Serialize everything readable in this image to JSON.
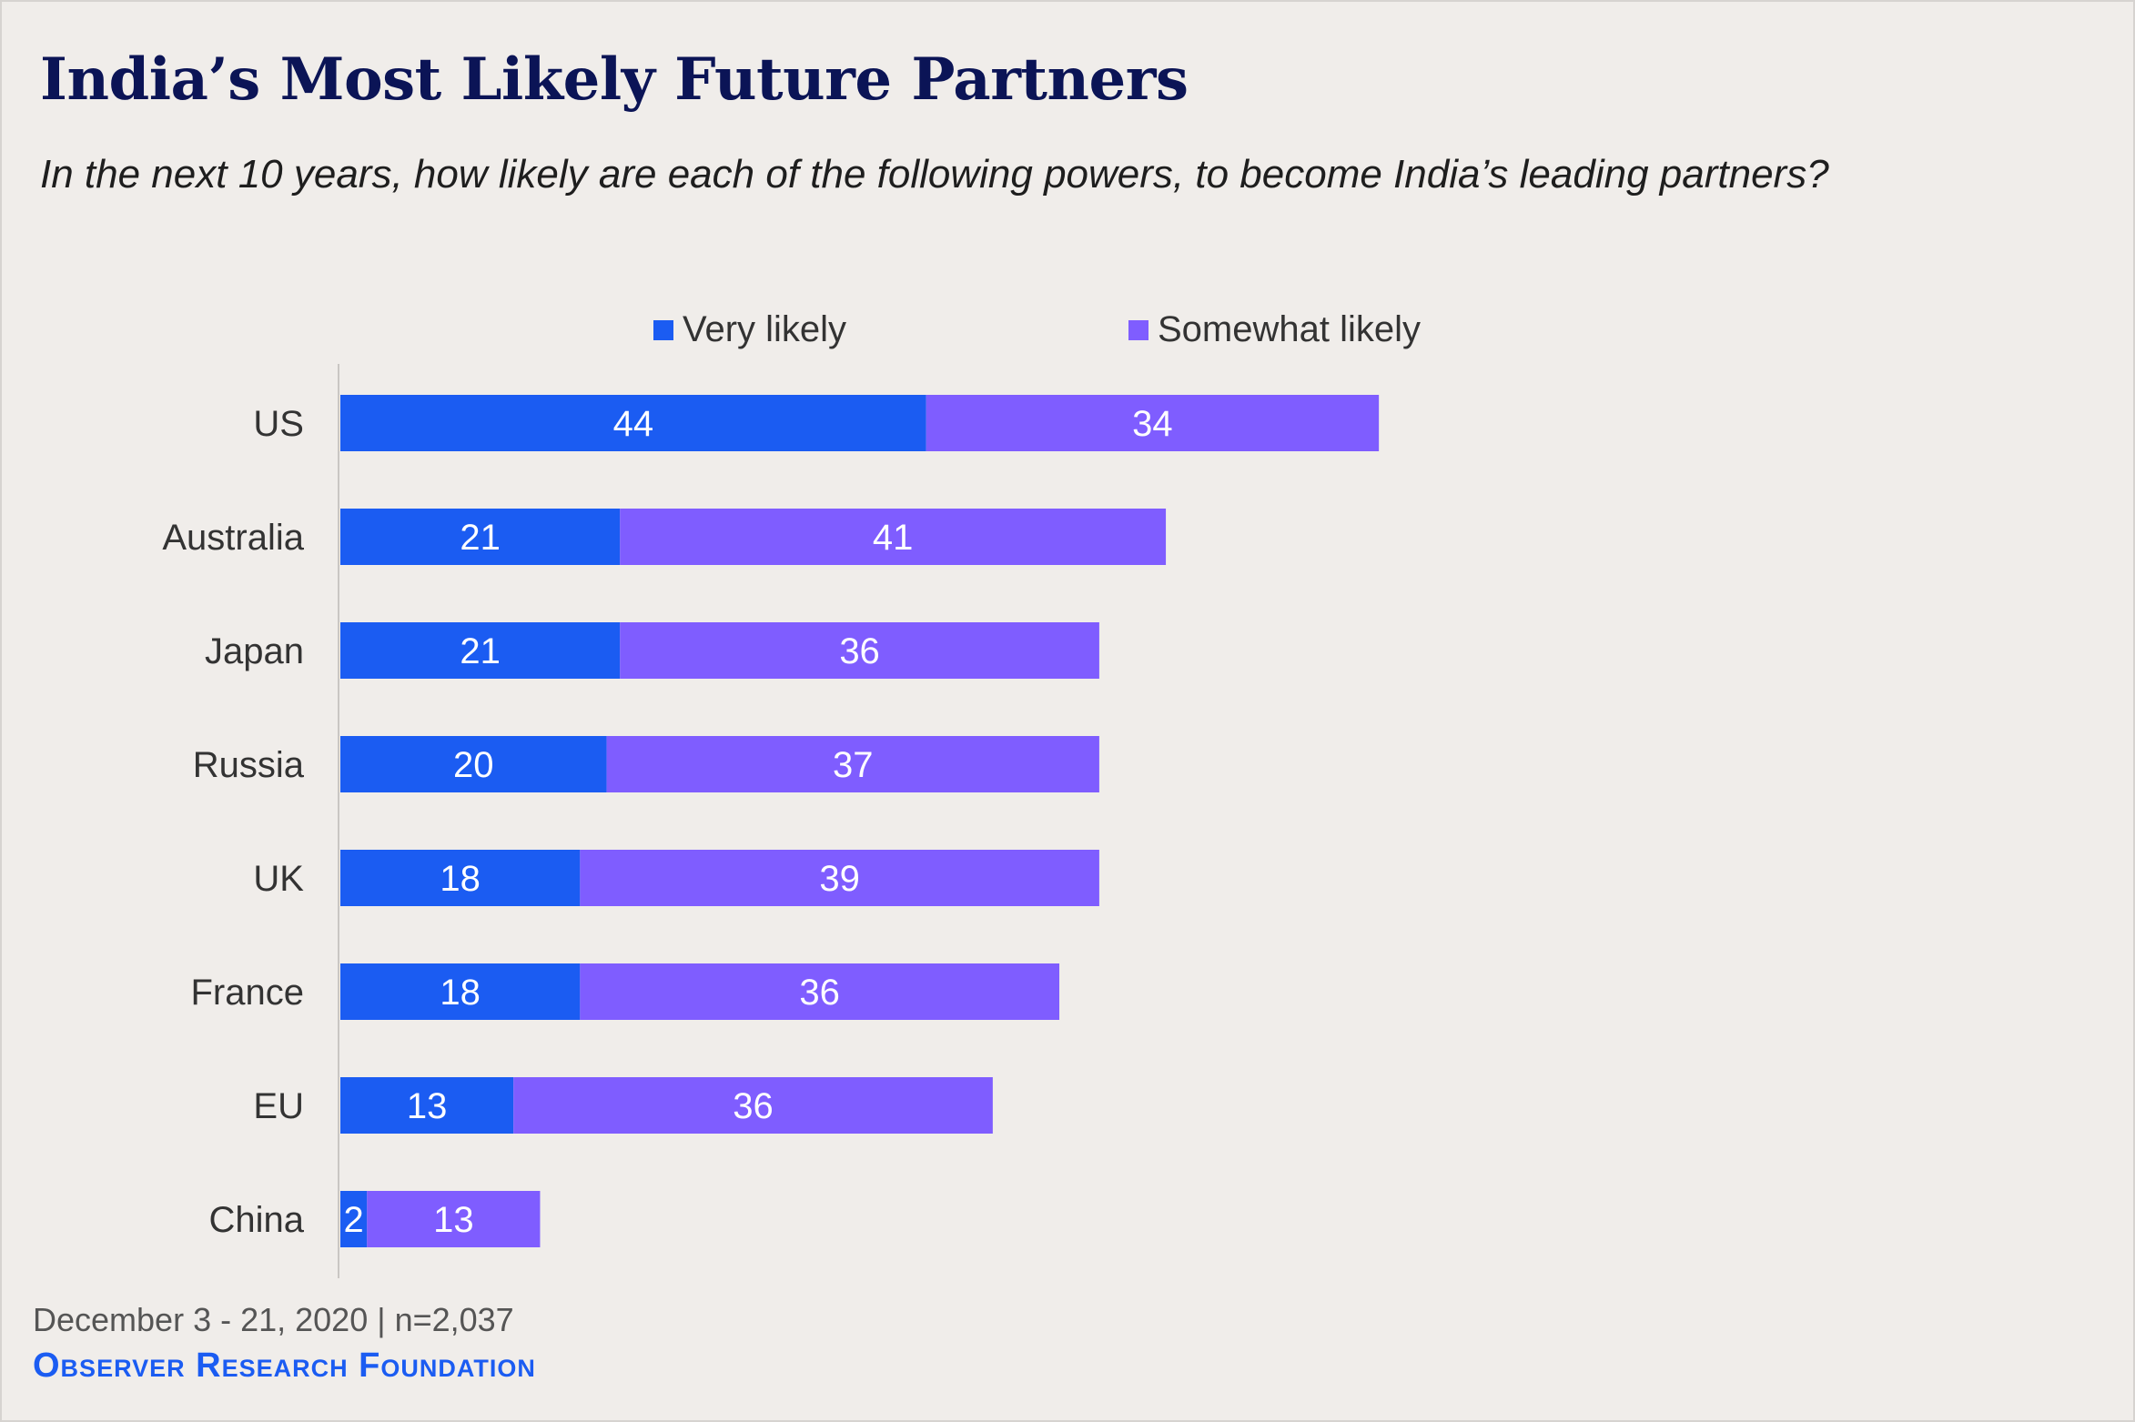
{
  "title": "India’s Most Likely Future Partners",
  "subtitle": "In the next 10 years, how likely are each of the following powers, to become India’s leading partners?",
  "colors": {
    "very_likely": "#1b5cf2",
    "somewhat_likely": "#7f5dff",
    "title": "#0b1456",
    "axis": "#c9c6c3"
  },
  "footer": {
    "date": "December 3 - 21, 2020 | n=2,037",
    "source": "Observer Research Foundation"
  },
  "chart_data": {
    "type": "bar",
    "orientation": "horizontal",
    "stacked": true,
    "categories": [
      "US",
      "Australia",
      "Japan",
      "Russia",
      "UK",
      "France",
      "EU",
      "China"
    ],
    "series": [
      {
        "name": "Very likely",
        "values": [
          44,
          21,
          21,
          20,
          18,
          18,
          13,
          2
        ]
      },
      {
        "name": "Somewhat likely",
        "values": [
          34,
          41,
          36,
          37,
          39,
          36,
          36,
          13
        ]
      }
    ],
    "data_labels": true,
    "legend_position": "top",
    "grid": false,
    "xlim": [
      0,
      78
    ]
  }
}
